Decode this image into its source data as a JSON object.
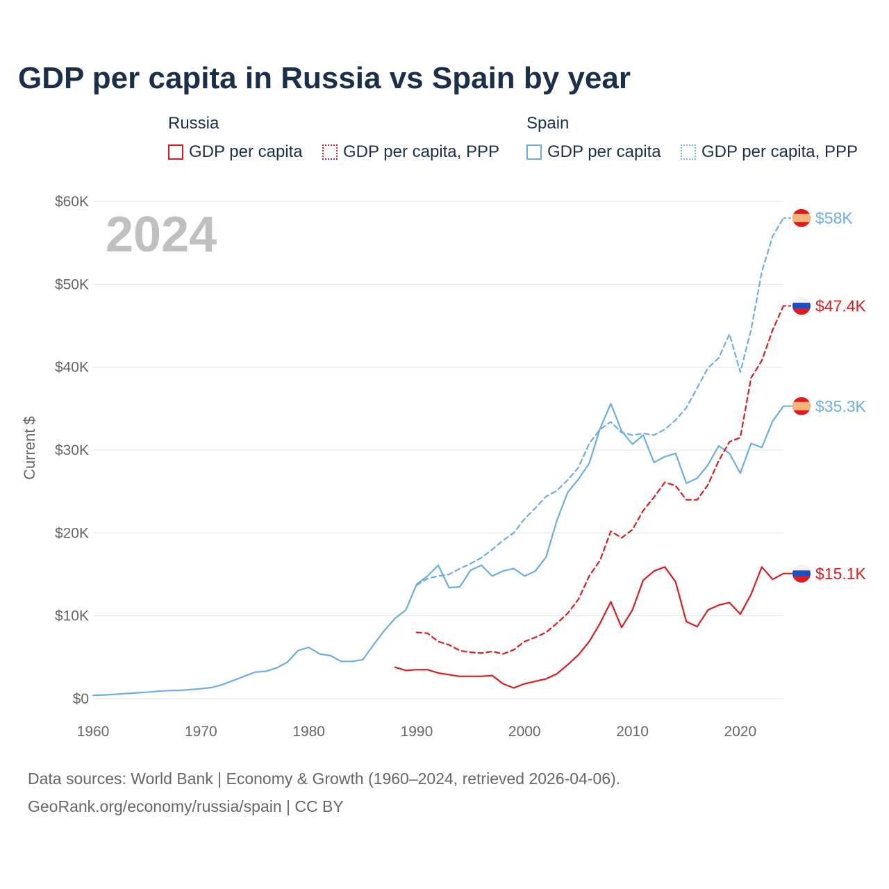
{
  "chart_data": {
    "type": "line",
    "title": "GDP per capita in Russia vs Spain by year",
    "ylabel": "Current $",
    "xlabel": "",
    "year_watermark": "2024",
    "xlim": [
      1960,
      2024
    ],
    "ylim": [
      0,
      60000
    ],
    "x_ticks": [
      1960,
      1970,
      1980,
      1990,
      2000,
      2010,
      2020
    ],
    "x_tick_labels": [
      "1960",
      "1970",
      "1980",
      "1990",
      "2000",
      "2010",
      "2020"
    ],
    "y_ticks": [
      0,
      10000,
      20000,
      30000,
      40000,
      50000,
      60000
    ],
    "y_tick_labels": [
      "$0",
      "$10K",
      "$20K",
      "$30K",
      "$40K",
      "$50K",
      "$60K"
    ],
    "legend": {
      "groups": [
        {
          "country": "Russia",
          "items": [
            {
              "label": "GDP per capita",
              "style": "solid",
              "color": "#e31a1c"
            },
            {
              "label": "GDP per capita, PPP",
              "style": "dotted",
              "color": "#e31a1c"
            }
          ]
        },
        {
          "country": "Spain",
          "items": [
            {
              "label": "GDP per capita",
              "style": "solid",
              "color": "#6aaee8"
            },
            {
              "label": "GDP per capita, PPP",
              "style": "dotted",
              "color": "#6aaee8"
            }
          ]
        }
      ]
    },
    "series": [
      {
        "name": "Spain GDP per capita",
        "country": "Spain",
        "flag": "spain",
        "color": "#6aaee8",
        "dash": false,
        "end_label": "$35.3K",
        "x": [
          1960,
          1961,
          1962,
          1963,
          1964,
          1965,
          1966,
          1967,
          1968,
          1969,
          1970,
          1971,
          1972,
          1973,
          1974,
          1975,
          1976,
          1977,
          1978,
          1979,
          1980,
          1981,
          1982,
          1983,
          1984,
          1985,
          1986,
          1987,
          1988,
          1989,
          1990,
          1991,
          1992,
          1993,
          1994,
          1995,
          1996,
          1997,
          1998,
          1999,
          2000,
          2001,
          2002,
          2003,
          2004,
          2005,
          2006,
          2007,
          2008,
          2009,
          2010,
          2011,
          2012,
          2013,
          2014,
          2015,
          2016,
          2017,
          2018,
          2019,
          2020,
          2021,
          2022,
          2023,
          2024
        ],
        "values": [
          400,
          450,
          530,
          620,
          700,
          780,
          900,
          980,
          1000,
          1100,
          1200,
          1350,
          1700,
          2200,
          2700,
          3200,
          3300,
          3700,
          4400,
          5800,
          6200,
          5400,
          5200,
          4500,
          4500,
          4700,
          6500,
          8200,
          9700,
          10700,
          13800,
          14800,
          16100,
          13400,
          13500,
          15500,
          16100,
          14800,
          15400,
          15700,
          14800,
          15400,
          17100,
          21500,
          24900,
          26500,
          28400,
          32600,
          35600,
          32300,
          30700,
          31800,
          28500,
          29200,
          29600,
          26000,
          26600,
          28200,
          30500,
          29600,
          27200,
          30800,
          30300,
          33500,
          35300
        ]
      },
      {
        "name": "Spain GDP per capita, PPP",
        "country": "Spain",
        "flag": "spain",
        "color": "#6aaee8",
        "dash": true,
        "end_label": "$58K",
        "x": [
          1990,
          1991,
          1992,
          1993,
          1994,
          1995,
          1996,
          1997,
          1998,
          1999,
          2000,
          2001,
          2002,
          2003,
          2004,
          2005,
          2006,
          2007,
          2008,
          2009,
          2010,
          2011,
          2012,
          2013,
          2014,
          2015,
          2016,
          2017,
          2018,
          2019,
          2020,
          2021,
          2022,
          2023,
          2024
        ],
        "values": [
          13700,
          14500,
          14800,
          15000,
          15700,
          16300,
          17000,
          18000,
          19100,
          20000,
          21700,
          23000,
          24400,
          25100,
          26400,
          27900,
          30800,
          32500,
          33400,
          32100,
          31800,
          32000,
          31800,
          32500,
          33600,
          35100,
          37500,
          39900,
          41100,
          44000,
          39400,
          44500,
          51500,
          55800,
          58000
        ]
      },
      {
        "name": "Russia GDP per capita, PPP",
        "country": "Russia",
        "flag": "russia",
        "color": "#e31a1c",
        "dash": true,
        "end_label": "$47.4K",
        "x": [
          1990,
          1991,
          1992,
          1993,
          1994,
          1995,
          1996,
          1997,
          1998,
          1999,
          2000,
          2001,
          2002,
          2003,
          2004,
          2005,
          2006,
          2007,
          2008,
          2009,
          2010,
          2011,
          2012,
          2013,
          2014,
          2015,
          2016,
          2017,
          2018,
          2019,
          2020,
          2021,
          2022,
          2023,
          2024
        ],
        "values": [
          8000,
          7900,
          6900,
          6500,
          5800,
          5600,
          5500,
          5700,
          5400,
          5900,
          6900,
          7400,
          8000,
          9100,
          10300,
          12000,
          14800,
          16700,
          20200,
          19400,
          20400,
          22700,
          24300,
          26100,
          25700,
          24000,
          24000,
          25800,
          28700,
          31000,
          31500,
          38700,
          40800,
          44500,
          47400
        ]
      },
      {
        "name": "Russia GDP per capita",
        "country": "Russia",
        "flag": "russia",
        "color": "#e31a1c",
        "dash": false,
        "end_label": "$15.1K",
        "x": [
          1988,
          1989,
          1990,
          1991,
          1992,
          1993,
          1994,
          1995,
          1996,
          1997,
          1998,
          1999,
          2000,
          2001,
          2002,
          2003,
          2004,
          2005,
          2006,
          2007,
          2008,
          2009,
          2010,
          2011,
          2012,
          2013,
          2014,
          2015,
          2016,
          2017,
          2018,
          2019,
          2020,
          2021,
          2022,
          2023,
          2024
        ],
        "values": [
          3800,
          3400,
          3500,
          3500,
          3100,
          2900,
          2700,
          2700,
          2700,
          2800,
          1800,
          1300,
          1800,
          2100,
          2400,
          3000,
          4100,
          5300,
          6900,
          9100,
          11700,
          8600,
          10700,
          14300,
          15400,
          15900,
          14100,
          9300,
          8700,
          10700,
          11300,
          11600,
          10200,
          12600,
          15900,
          14400,
          15100
        ]
      }
    ]
  },
  "footer": {
    "line1": "Data sources: World Bank | Economy & Growth (1960–2024, retrieved 2026-04-06).",
    "line2": "GeoRank.org/economy/russia/spain | CC BY"
  },
  "colors": {
    "russia": "#e31a1c",
    "spain": "#6aaee8",
    "title": "#1c2f4a",
    "watermark": "#c0c0c0"
  }
}
